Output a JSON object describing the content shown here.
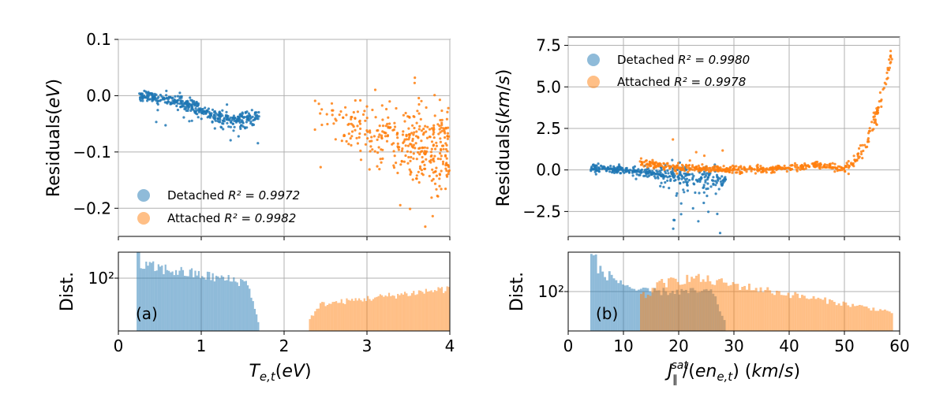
{
  "colors": {
    "detached": "#1f77b4",
    "attached": "#ff7f0e"
  },
  "chart_data": [
    {
      "type": "scatter",
      "panel": "a-top",
      "xlabel": "T_{e,t}(eV)",
      "ylabel": "Residuals(eV)",
      "xlim": [
        0,
        4
      ],
      "ylim": [
        -0.25,
        0.1
      ],
      "xticks": [
        0,
        1,
        2,
        3,
        4
      ],
      "yticks": [
        0.1,
        0.0,
        -0.1,
        -0.2
      ],
      "ytick_labels": [
        "0.1",
        "0.0",
        "−0.1",
        "−0.2"
      ],
      "grid": true,
      "legend_position": "lower-left",
      "series": [
        {
          "name": "Detached",
          "r2": "0.9972",
          "legend_prefix": "Detached ",
          "legend_r2": "R² = 0.9972",
          "trend_x": [
            0.25,
            0.5,
            0.8,
            1.0,
            1.2,
            1.35,
            1.5,
            1.7
          ],
          "trend_y": [
            0.0,
            -0.005,
            -0.015,
            -0.025,
            -0.038,
            -0.045,
            -0.042,
            -0.035
          ],
          "x_range": [
            0.25,
            1.7
          ]
        },
        {
          "name": "Attached",
          "r2": "0.9982",
          "legend_prefix": "Attached ",
          "legend_r2": "R² = 0.9982",
          "trend_x": [
            2.3,
            2.6,
            3.0,
            3.4,
            3.8,
            4.0
          ],
          "trend_y": [
            -0.02,
            -0.045,
            -0.07,
            -0.085,
            -0.095,
            -0.1
          ],
          "x_range": [
            2.3,
            4.0
          ]
        }
      ]
    },
    {
      "type": "histogram",
      "panel": "a-bottom",
      "ylabel": "Dist.",
      "yscale": "log",
      "ytick_labels": [
        "10²"
      ],
      "tag": "(a)",
      "xlim": [
        0,
        4
      ],
      "series": [
        {
          "name": "Detached",
          "x_range": [
            0.22,
            1.7
          ]
        },
        {
          "name": "Attached",
          "x_range": [
            2.3,
            4.0
          ]
        }
      ]
    },
    {
      "type": "scatter",
      "panel": "b-top",
      "xlabel": "J∥^sat/(en_{e,t}) (km/s)",
      "ylabel": "Residuals(km/s)",
      "xlim": [
        0,
        60
      ],
      "ylim": [
        -4.0,
        8.0
      ],
      "xticks": [
        0,
        10,
        20,
        30,
        40,
        50,
        60
      ],
      "yticks": [
        7.5,
        5.0,
        2.5,
        0.0,
        -2.5
      ],
      "ytick_labels": [
        "7.5",
        "5.0",
        "2.5",
        "0.0",
        "−2.5"
      ],
      "grid": true,
      "legend_position": "upper-left",
      "series": [
        {
          "name": "Detached",
          "r2": "0.9980",
          "legend_prefix": "Detached ",
          "legend_r2": "R² = 0.9980",
          "trend_x": [
            4,
            10,
            15,
            20,
            25,
            28
          ],
          "trend_y": [
            0.1,
            0.0,
            -0.2,
            -0.4,
            -0.5,
            -0.6
          ],
          "x_range": [
            4,
            28.5
          ]
        },
        {
          "name": "Attached",
          "r2": "0.9978",
          "legend_prefix": "Attached ",
          "legend_r2": "R² = 0.9978",
          "trend_x": [
            13,
            20,
            30,
            40,
            45,
            50,
            52,
            54,
            55,
            56,
            57,
            58,
            58.8
          ],
          "trend_y": [
            0.4,
            0.1,
            0.0,
            0.1,
            0.3,
            0.1,
            0.5,
            1.5,
            2.5,
            3.5,
            4.6,
            6.0,
            7.3
          ],
          "x_range": [
            13,
            58.8
          ]
        }
      ]
    },
    {
      "type": "histogram",
      "panel": "b-bottom",
      "ylabel": "Dist.",
      "yscale": "log",
      "ytick_labels": [
        "10²"
      ],
      "tag": "(b)",
      "xlim": [
        0,
        60
      ],
      "series": [
        {
          "name": "Detached",
          "x_range": [
            4,
            28.5
          ]
        },
        {
          "name": "Attached",
          "x_range": [
            13,
            58.8
          ]
        }
      ]
    }
  ]
}
